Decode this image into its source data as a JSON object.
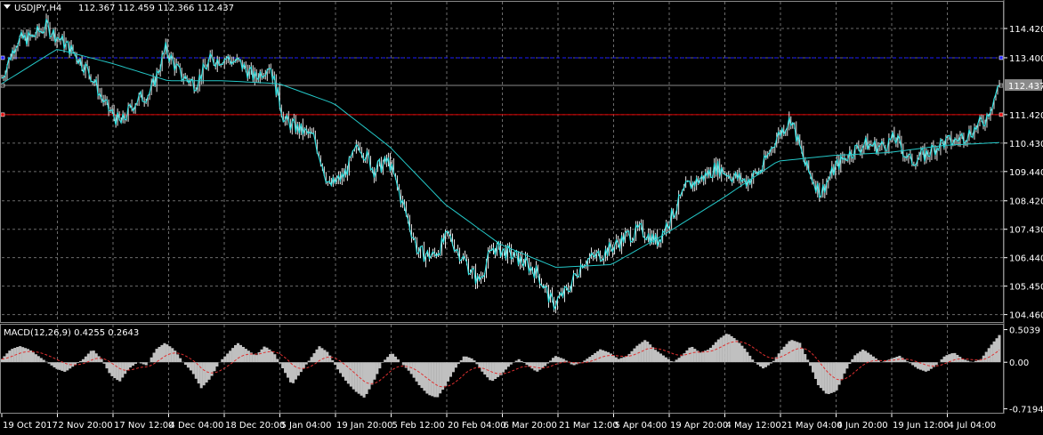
{
  "chart_data": [
    {
      "type": "line",
      "symbol": "USDJPY,H4",
      "ohlc": "112.367 112.459 112.366 112.437",
      "last_price": "112.437",
      "ylim": [
        104.2,
        115.35
      ],
      "y_ticks": [
        "114.420",
        "113.400",
        "112.437",
        "111.420",
        "110.430",
        "109.440",
        "108.420",
        "107.430",
        "106.440",
        "105.450",
        "104.460"
      ],
      "x_ticks": [
        "19 Oct 2017",
        "2 Nov 20:00",
        "17 Nov 12:00",
        "4 Dec 04:00",
        "18 Dec 20:00",
        "5 Jan 04:00",
        "19 Jan 20:00",
        "5 Feb 12:00",
        "20 Feb 04:00",
        "6 Mar 20:00",
        "21 Mar 12:00",
        "5 Apr 04:00",
        "19 Apr 20:00",
        "4 May 12:00",
        "21 May 04:00",
        "4 Jun 20:00",
        "19 Jun 12:00",
        "4 Jul 04:00"
      ],
      "grid": true,
      "horizontal_lines": [
        {
          "value": 113.4,
          "color": "#1a1aff",
          "style": "dashed"
        },
        {
          "value": 111.42,
          "color": "#e00000",
          "style": "solid"
        },
        {
          "value": 112.437,
          "color": "#8a8a8a",
          "style": "solid"
        }
      ],
      "series": [
        {
          "role": "price",
          "color": "#2ee6e6",
          "x": [
            "19 Oct 2017",
            "24 Oct",
            "29 Oct",
            "2 Nov",
            "6 Nov",
            "10 Nov",
            "14 Nov",
            "17 Nov",
            "21 Nov",
            "25 Nov",
            "29 Nov",
            "4 Dec",
            "8 Dec",
            "12 Dec",
            "15 Dec",
            "18 Dec",
            "22 Dec",
            "28 Dec",
            "5 Jan",
            "10 Jan",
            "15 Jan",
            "19 Jan",
            "24 Jan",
            "29 Jan",
            "1 Feb",
            "5 Feb",
            "8 Feb",
            "12 Feb",
            "16 Feb",
            "20 Feb",
            "24 Feb",
            "28 Feb",
            "2 Mar",
            "6 Mar",
            "10 Mar",
            "14 Mar",
            "18 Mar",
            "21 Mar",
            "25 Mar",
            "29 Mar",
            "2 Apr",
            "5 Apr",
            "9 Apr",
            "13 Apr",
            "16 Apr",
            "19 Apr",
            "23 Apr",
            "27 Apr",
            "1 May",
            "4 May",
            "8 May",
            "12 May",
            "16 May",
            "21 May",
            "24 May",
            "28 May",
            "1 Jun",
            "4 Jun",
            "8 Jun",
            "12 Jun",
            "16 Jun",
            "19 Jun",
            "23 Jun",
            "27 Jun",
            "1 Jul",
            "4 Jul",
            "7 Jul",
            "10 Jul"
          ],
          "values": [
            112.7,
            114.0,
            114.1,
            114.5,
            114.0,
            113.5,
            112.8,
            111.7,
            111.1,
            111.9,
            112.2,
            113.7,
            112.8,
            112.5,
            113.3,
            113.4,
            113.2,
            112.7,
            113.2,
            111.2,
            110.9,
            110.6,
            108.9,
            109.3,
            110.4,
            109.5,
            109.8,
            108.2,
            106.6,
            106.5,
            107.2,
            106.4,
            105.6,
            106.8,
            106.6,
            106.3,
            105.9,
            104.8,
            105.3,
            106.3,
            106.5,
            106.8,
            107.2,
            107.4,
            107.0,
            107.9,
            108.9,
            109.2,
            109.6,
            109.3,
            109.1,
            109.5,
            110.6,
            111.3,
            109.6,
            108.7,
            109.6,
            110.1,
            110.4,
            110.3,
            110.6,
            109.8,
            110.0,
            110.4,
            110.5,
            110.8,
            111.2,
            112.437
          ]
        },
        {
          "role": "moving_average",
          "color": "#24c8c8",
          "x": [
            "19 Oct 2017",
            "2 Nov",
            "17 Nov",
            "4 Dec",
            "18 Dec",
            "5 Jan",
            "19 Jan",
            "5 Feb",
            "20 Feb",
            "6 Mar",
            "21 Mar",
            "5 Apr",
            "19 Apr",
            "4 May",
            "21 May",
            "4 Jun",
            "19 Jun",
            "4 Jul",
            "10 Jul"
          ],
          "values": [
            112.5,
            113.7,
            113.2,
            112.6,
            112.6,
            112.5,
            111.8,
            110.3,
            108.3,
            106.9,
            106.1,
            106.2,
            107.3,
            108.5,
            109.8,
            110.0,
            110.1,
            110.35,
            110.45
          ]
        }
      ]
    },
    {
      "type": "area",
      "label": "MACD(12,26,9) 0.4255 0.2643",
      "ylim": [
        -0.78,
        0.58
      ],
      "y_ticks": [
        "0.5039",
        "0.00",
        "-0.7194"
      ],
      "series": [
        {
          "role": "macd_histogram",
          "color": "#c0c0c0",
          "values": [
            0.05,
            0.2,
            0.25,
            0.2,
            0.1,
            0.0,
            -0.1,
            -0.15,
            -0.05,
            0.05,
            0.2,
            0.05,
            -0.2,
            -0.3,
            -0.1,
            0.0,
            -0.05,
            0.2,
            0.3,
            0.2,
            0.0,
            -0.15,
            -0.4,
            -0.25,
            0.0,
            0.15,
            0.3,
            0.2,
            0.1,
            0.25,
            0.15,
            -0.1,
            -0.35,
            -0.15,
            0.05,
            0.25,
            0.15,
            -0.1,
            -0.3,
            -0.45,
            -0.55,
            -0.3,
            0.0,
            0.15,
            0.0,
            -0.15,
            -0.35,
            -0.5,
            -0.55,
            -0.35,
            -0.1,
            0.1,
            0.05,
            -0.15,
            -0.3,
            -0.2,
            -0.05,
            0.05,
            -0.05,
            -0.15,
            -0.05,
            0.1,
            0.05,
            -0.05,
            0.0,
            0.1,
            0.2,
            0.15,
            0.05,
            0.1,
            0.25,
            0.35,
            0.2,
            0.1,
            0.0,
            0.1,
            0.25,
            0.15,
            0.2,
            0.35,
            0.45,
            0.35,
            0.2,
            0.0,
            -0.1,
            0.0,
            0.2,
            0.35,
            0.3,
            0.0,
            -0.35,
            -0.5,
            -0.45,
            -0.15,
            0.1,
            0.2,
            0.1,
            0.0,
            0.05,
            0.1,
            0.0,
            -0.1,
            -0.15,
            -0.05,
            0.1,
            0.15,
            0.05,
            0.0,
            0.05,
            0.25,
            0.42
          ]
        },
        {
          "role": "signal",
          "color": "#e03030",
          "style": "dashed"
        }
      ]
    }
  ]
}
